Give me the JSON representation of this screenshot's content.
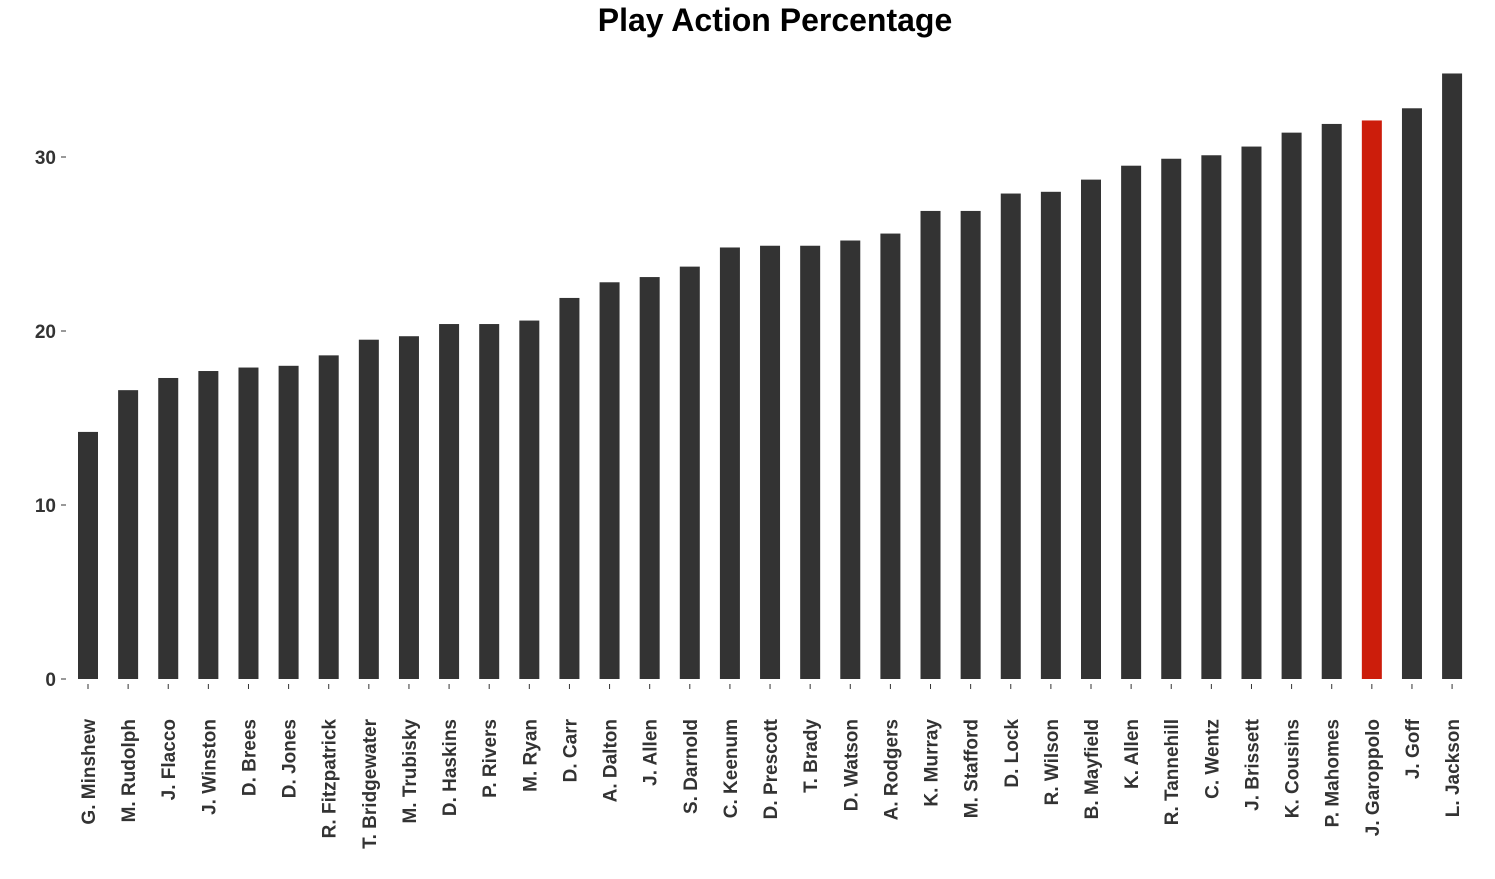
{
  "chart_data": {
    "type": "bar",
    "title": "Play Action Percentage",
    "xlabel": "",
    "ylabel": "",
    "ylim": [
      0,
      35
    ],
    "yticks": [
      0,
      10,
      20,
      30
    ],
    "grid": false,
    "legend": "none",
    "categories": [
      "G. Minshew",
      "M. Rudolph",
      "J. Flacco",
      "J. Winston",
      "D. Brees",
      "D. Jones",
      "R. Fitzpatrick",
      "T. Bridgewater",
      "M. Trubisky",
      "D. Haskins",
      "P. Rivers",
      "M. Ryan",
      "D. Carr",
      "A. Dalton",
      "J. Allen",
      "S. Darnold",
      "C. Keenum",
      "D. Prescott",
      "T. Brady",
      "D. Watson",
      "A. Rodgers",
      "K. Murray",
      "M. Stafford",
      "D. Lock",
      "R. Wilson",
      "B. Mayfield",
      "K. Allen",
      "R. Tannehill",
      "C. Wentz",
      "J. Brissett",
      "K. Cousins",
      "P. Mahomes",
      "J. Garoppolo",
      "J. Goff",
      "L. Jackson"
    ],
    "values": [
      14.2,
      16.6,
      17.3,
      17.7,
      17.9,
      18.0,
      18.6,
      19.5,
      19.7,
      20.4,
      20.4,
      20.6,
      21.9,
      22.8,
      23.1,
      23.7,
      24.8,
      24.9,
      24.9,
      25.2,
      25.6,
      26.9,
      26.9,
      27.9,
      28.0,
      28.7,
      29.5,
      29.9,
      30.1,
      30.6,
      31.4,
      31.9,
      32.1,
      32.8,
      34.8
    ],
    "highlight": "J. Garoppolo",
    "colors": {
      "bar": "#333333",
      "highlight": "#cc1d0b",
      "axis_text": "#333333"
    }
  }
}
